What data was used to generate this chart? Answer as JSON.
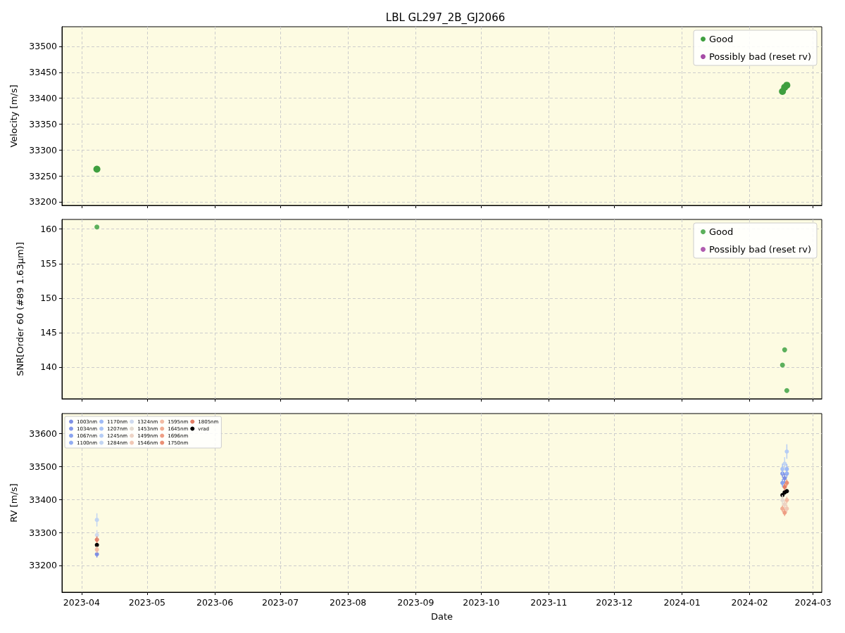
{
  "chart_data": [
    {
      "type": "scatter",
      "title": "LBL GL297_2B_GJ2066",
      "ylabel": "Velocity [m/s]",
      "x": [
        "2023-04-08",
        "2024-02-16",
        "2024-02-17",
        "2024-02-18"
      ],
      "series": [
        {
          "name": "Good",
          "color": "#3f9f3f",
          "values": [
            33263,
            33413,
            33421,
            33425
          ]
        },
        {
          "name": "Possibly bad (reset rv)",
          "color": "#a64ca6",
          "values": [
            null,
            null,
            null,
            null
          ]
        }
      ],
      "xlim": [
        "2023-03-23",
        "2024-03-05"
      ],
      "xticks": [
        "2023-04",
        "2023-05",
        "2023-06",
        "2023-07",
        "2023-08",
        "2023-09",
        "2023-10",
        "2023-11",
        "2023-12",
        "2024-01",
        "2024-02",
        "2024-03"
      ],
      "ylim": [
        33193,
        33538
      ],
      "yticks": [
        33200,
        33250,
        33300,
        33350,
        33400,
        33450,
        33500
      ],
      "grid": true,
      "legend": "top right",
      "marker": "circle",
      "tick_labels": "y"
    },
    {
      "type": "scatter",
      "ylabel": "SNR[Order 60 (#89 1.63μm)]",
      "x": [
        "2023-04-08",
        "2024-02-16",
        "2024-02-17",
        "2024-02-18"
      ],
      "series": [
        {
          "name": "Good",
          "color": "#5cb05c",
          "values": [
            160.3,
            140.3,
            142.5,
            136.6
          ]
        },
        {
          "name": "Possibly bad (reset rv)",
          "color": "#b05cb0",
          "values": [
            null,
            null,
            null,
            null
          ]
        }
      ],
      "xlim": [
        "2023-03-23",
        "2024-03-05"
      ],
      "xticks": [
        "2023-04",
        "2023-05",
        "2023-06",
        "2023-07",
        "2023-08",
        "2023-09",
        "2023-10",
        "2023-11",
        "2023-12",
        "2024-01",
        "2024-02",
        "2024-03"
      ],
      "ylim": [
        135.4,
        161.4
      ],
      "yticks": [
        140,
        145,
        150,
        155,
        160
      ],
      "grid": true,
      "legend": "top right",
      "marker": "circle",
      "tick_labels": "y"
    },
    {
      "type": "scatter",
      "xlabel": "Date",
      "ylabel": "RV [m/s]",
      "x": [
        "2023-04-08",
        "2024-02-16",
        "2024-02-17",
        "2024-02-18"
      ],
      "series": [
        {
          "name": "1003nm",
          "color": "#7e8fe4",
          "values": [
            33234,
            null,
            33464,
            null
          ],
          "errors": [
            10,
            null,
            14,
            null
          ]
        },
        {
          "name": "1034nm",
          "color": "#8498ea",
          "values": [
            null,
            33478,
            null,
            null
          ],
          "errors": [
            null,
            12,
            null,
            null
          ]
        },
        {
          "name": "1067nm",
          "color": "#8aa3ef",
          "values": [
            null,
            33450,
            null,
            null
          ],
          "errors": [
            null,
            12,
            null,
            null
          ]
        },
        {
          "name": "1100nm",
          "color": "#93adf2",
          "values": [
            null,
            null,
            null,
            33478
          ],
          "errors": [
            null,
            null,
            null,
            12
          ]
        },
        {
          "name": "1170nm",
          "color": "#9fbaf5",
          "values": [
            null,
            null,
            null,
            33492
          ],
          "errors": [
            null,
            null,
            null,
            15
          ]
        },
        {
          "name": "1207nm",
          "color": "#aac4f6",
          "values": [
            null,
            33492,
            null,
            null
          ],
          "errors": [
            null,
            16,
            null,
            null
          ]
        },
        {
          "name": "1245nm",
          "color": "#b6cdf5",
          "values": [
            null,
            null,
            null,
            33545
          ],
          "errors": [
            null,
            null,
            null,
            22
          ]
        },
        {
          "name": "1284nm",
          "color": "#c2d5f2",
          "values": [
            33338,
            null,
            33508,
            null
          ],
          "errors": [
            20,
            null,
            20,
            null
          ]
        },
        {
          "name": "1324nm",
          "color": "#cfdaee",
          "values": [
            33292,
            null,
            null,
            null
          ],
          "errors": [
            15,
            null,
            null,
            null
          ]
        },
        {
          "name": "1453nm",
          "color": "#e5dcd1",
          "values": [
            null,
            33398,
            null,
            null
          ],
          "errors": [
            null,
            15,
            null,
            null
          ]
        },
        {
          "name": "1499nm",
          "color": "#edd3c4",
          "values": [
            null,
            null,
            33385,
            null
          ],
          "errors": [
            null,
            null,
            12,
            null
          ]
        },
        {
          "name": "1546nm",
          "color": "#f1c8b5",
          "values": [
            null,
            null,
            null,
            33372
          ],
          "errors": [
            null,
            null,
            null,
            12
          ]
        },
        {
          "name": "1595nm",
          "color": "#f3bba4",
          "values": [
            33248,
            null,
            null,
            33398
          ],
          "errors": [
            10,
            null,
            null,
            10
          ]
        },
        {
          "name": "1645nm",
          "color": "#f1ad94",
          "values": [
            null,
            33372,
            null,
            null
          ],
          "errors": [
            null,
            10,
            null,
            null
          ]
        },
        {
          "name": "1696nm",
          "color": "#ee9e84",
          "values": [
            null,
            null,
            33360,
            null
          ],
          "errors": [
            null,
            null,
            10,
            null
          ]
        },
        {
          "name": "1750nm",
          "color": "#ea8f75",
          "values": [
            null,
            null,
            null,
            33450
          ],
          "errors": [
            null,
            null,
            null,
            10
          ]
        },
        {
          "name": "1805nm",
          "color": "#e47e66",
          "values": [
            33278,
            null,
            33438,
            null
          ],
          "errors": [
            10,
            null,
            10,
            null
          ]
        },
        {
          "name": "vrad",
          "color": "#000000",
          "values": [
            33262,
            33413,
            33421,
            33425
          ]
        }
      ],
      "xlim": [
        "2023-03-23",
        "2024-03-05"
      ],
      "xticks": [
        "2023-04",
        "2023-05",
        "2023-06",
        "2023-07",
        "2023-08",
        "2023-09",
        "2023-10",
        "2023-11",
        "2023-12",
        "2024-01",
        "2024-02",
        "2024-03"
      ],
      "ylim": [
        33119,
        33660
      ],
      "yticks": [
        33200,
        33300,
        33400,
        33500,
        33600
      ],
      "grid": true,
      "legend": "top left",
      "marker": "circle"
    }
  ]
}
